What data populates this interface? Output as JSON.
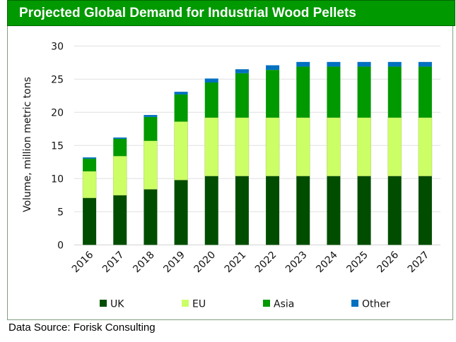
{
  "title": "Projected Global Demand for Industrial Wood Pellets",
  "source": "Data Source: Forisk Consulting",
  "chart_data": {
    "type": "bar",
    "stacked": true,
    "title": "Projected Global Demand for Industrial Wood Pellets",
    "xlabel": "",
    "ylabel": "Volume, million metric tons",
    "ylim": [
      0,
      30
    ],
    "yticks": [
      0,
      5,
      10,
      15,
      20,
      25,
      30
    ],
    "ytick_labels": [
      "0",
      "5",
      "10",
      "15",
      "20",
      "25",
      "30"
    ],
    "grid": true,
    "legend_position": "bottom",
    "categories": [
      "2016",
      "2017",
      "2018",
      "2019",
      "2020",
      "2021",
      "2022",
      "2023",
      "2024",
      "2025",
      "2026",
      "2027"
    ],
    "series": [
      {
        "name": "UK",
        "color": "#004d00",
        "values": [
          7.1,
          7.5,
          8.4,
          9.8,
          10.4,
          10.4,
          10.4,
          10.4,
          10.4,
          10.4,
          10.4,
          10.4
        ]
      },
      {
        "name": "EU",
        "color": "#ccff66",
        "values": [
          4.0,
          5.9,
          7.3,
          8.8,
          8.8,
          8.8,
          8.8,
          8.8,
          8.8,
          8.8,
          8.8,
          8.8
        ]
      },
      {
        "name": "Asia",
        "color": "#009900",
        "values": [
          1.9,
          2.6,
          3.6,
          4.1,
          5.3,
          6.7,
          7.2,
          7.7,
          7.7,
          7.7,
          7.7,
          7.7
        ]
      },
      {
        "name": "Other",
        "color": "#0070c0",
        "values": [
          0.2,
          0.2,
          0.3,
          0.4,
          0.6,
          0.6,
          0.7,
          0.7,
          0.7,
          0.7,
          0.7,
          0.7
        ]
      }
    ]
  }
}
